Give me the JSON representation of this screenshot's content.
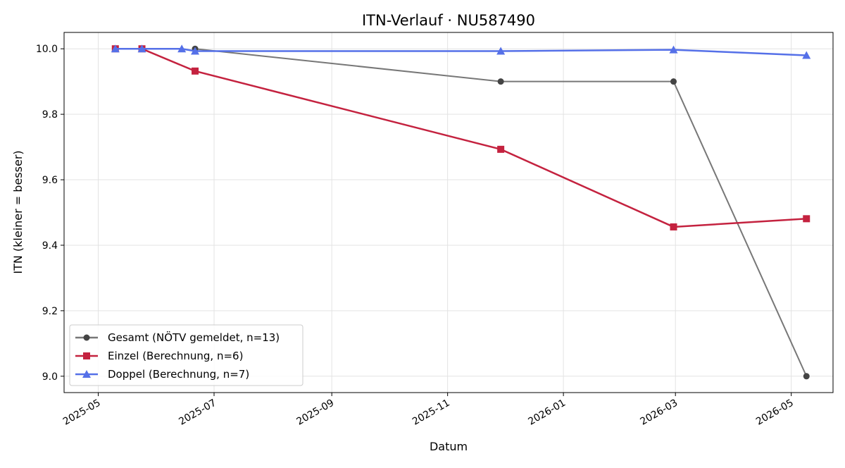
{
  "chart_data": {
    "type": "line",
    "title": "ITN-Verlauf · NU587490",
    "xlabel": "Datum",
    "ylabel": "ITN  (kleiner = besser)",
    "xlim": [
      "2025-04-13",
      "2026-05-23"
    ],
    "ylim": [
      8.95,
      10.05
    ],
    "x_ticks": [
      "2025-05",
      "2025-07",
      "2025-09",
      "2025-11",
      "2026-01",
      "2026-03",
      "2026-05"
    ],
    "x_tick_dates": [
      "2025-05-01",
      "2025-07-01",
      "2025-09-01",
      "2025-11-01",
      "2026-01-01",
      "2026-03-01",
      "2026-05-01"
    ],
    "y_ticks": [
      "9.0",
      "9.2",
      "9.4",
      "9.6",
      "9.8",
      "10.0"
    ],
    "y_tick_values": [
      9.0,
      9.2,
      9.4,
      9.6,
      9.8,
      10.0
    ],
    "grid": true,
    "legend_position": "lower-left",
    "series": [
      {
        "name": "Gesamt (NÖTV gemeldet, n=13)",
        "color": "#777777",
        "marker_color": "#444444",
        "marker": "circle",
        "x": [
          "2025-06-21",
          "2025-11-29",
          "2026-02-28",
          "2026-05-09"
        ],
        "y": [
          10.0,
          9.9,
          9.9,
          9.0
        ]
      },
      {
        "name": "Einzel (Berechnung, n=6)",
        "color": "#c4223f",
        "marker_color": "#c4223f",
        "marker": "square",
        "x": [
          "2025-05-10",
          "2025-05-24",
          "2025-06-21",
          "2025-11-29",
          "2026-02-28",
          "2026-05-09"
        ],
        "y": [
          10.0,
          10.0,
          9.932,
          9.693,
          9.456,
          9.481
        ]
      },
      {
        "name": "Doppel (Berechnung, n=7)",
        "color": "#5570e8",
        "marker_color": "#5570e8",
        "marker": "triangle",
        "x": [
          "2025-05-10",
          "2025-05-24",
          "2025-06-14",
          "2025-06-21",
          "2025-11-29",
          "2026-02-28",
          "2026-05-09"
        ],
        "y": [
          10.0,
          10.0,
          10.0,
          9.993,
          9.993,
          9.997,
          9.98
        ]
      }
    ]
  }
}
